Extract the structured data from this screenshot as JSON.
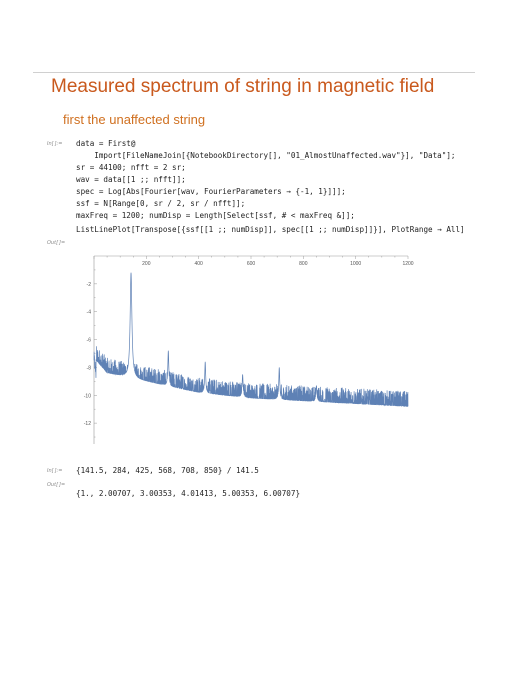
{
  "notebook": {
    "title": "Measured spectrum of string in magnetic field",
    "subtitle": "first the unaffected string",
    "input_label_1": "In[ ]:=",
    "output_label_1": "Out[ ]=",
    "input_label_2": "In[ ]:=",
    "output_label_2": "Out[ ]=",
    "code": [
      "data = First@",
      "    Import[FileNameJoin[{NotebookDirectory[], \"01_AlmostUnaffected.wav\"}], \"Data\"];",
      "sr = 44100; nfft = 2 sr;",
      "wav = data[[1 ;; nfft]];",
      "spec = Log[Abs[Fourier[wav, FourierParameters → {-1, 1}]]];",
      "ssf = N[Range[0, sr / 2, sr / nfft]];",
      "maxFreq = 1200; numDisp = Length[Select[ssf, # < maxFreq &]];",
      "ListLinePlot[Transpose[{ssf[[1 ;; numDisp]], spec[[1 ;; numDisp]]}], PlotRange → All]"
    ],
    "input2": "{141.5, 284, 425, 568, 708, 850} / 141.5",
    "output2": "{1., 2.00707, 3.00353, 4.01413, 5.00353, 6.00707}"
  },
  "chart_data": {
    "type": "line",
    "x_ticks": [
      "200",
      "400",
      "600",
      "800",
      "1000",
      "1200"
    ],
    "y_ticks": [
      "-2",
      "-4",
      "-6",
      "-8",
      "-10",
      "-12"
    ],
    "xlim": [
      0,
      1200
    ],
    "ylim": [
      -13.5,
      0
    ],
    "grid": false,
    "color": "#5e81b5",
    "peaks": [
      {
        "x": 141.5,
        "y": -1.2
      },
      {
        "x": 284,
        "y": -6.8
      },
      {
        "x": 425,
        "y": -7.6
      },
      {
        "x": 568,
        "y": -8.5
      },
      {
        "x": 708,
        "y": -8.0
      },
      {
        "x": 850,
        "y": -9.3
      }
    ],
    "baseline": [
      {
        "x": 0,
        "y": -7.3
      },
      {
        "x": 50,
        "y": -8.4
      },
      {
        "x": 100,
        "y": -8.6
      },
      {
        "x": 200,
        "y": -9.0
      },
      {
        "x": 400,
        "y": -9.8
      },
      {
        "x": 600,
        "y": -10.2
      },
      {
        "x": 800,
        "y": -10.4
      },
      {
        "x": 1000,
        "y": -10.6
      },
      {
        "x": 1200,
        "y": -10.8
      }
    ]
  }
}
